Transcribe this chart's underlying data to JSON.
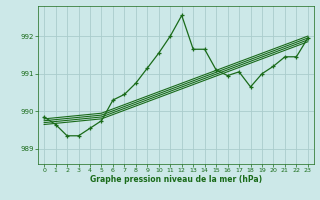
{
  "xlabel": "Graphe pression niveau de la mer (hPa)",
  "bg_color": "#cce8e8",
  "grid_color": "#aacccc",
  "line_color": "#1a6b1a",
  "xlim": [
    -0.5,
    23.5
  ],
  "ylim": [
    988.6,
    992.8
  ],
  "yticks": [
    989,
    990,
    991,
    992
  ],
  "xticks": [
    0,
    1,
    2,
    3,
    4,
    5,
    6,
    7,
    8,
    9,
    10,
    11,
    12,
    13,
    14,
    15,
    16,
    17,
    18,
    19,
    20,
    21,
    22,
    23
  ],
  "line1_x": [
    0,
    1,
    2,
    3,
    4,
    5,
    6,
    7,
    8,
    9,
    10,
    11,
    12,
    13,
    14,
    15,
    16,
    17,
    18,
    19,
    20,
    21,
    22,
    23
  ],
  "line1_y": [
    989.85,
    989.65,
    989.35,
    989.35,
    989.55,
    989.75,
    990.3,
    990.45,
    990.75,
    991.15,
    991.55,
    992.0,
    992.55,
    991.65,
    991.65,
    991.1,
    990.95,
    991.05,
    990.65,
    991.0,
    991.2,
    991.45,
    991.45,
    991.95
  ],
  "line2_x": [
    0,
    5,
    23
  ],
  "line2_y": [
    989.65,
    989.8,
    991.85
  ],
  "line3_x": [
    0,
    5,
    23
  ],
  "line3_y": [
    989.7,
    989.85,
    991.9
  ],
  "line4_x": [
    0,
    5,
    23
  ],
  "line4_y": [
    989.75,
    989.9,
    991.95
  ],
  "line5_x": [
    0,
    5,
    23
  ],
  "line5_y": [
    989.8,
    989.95,
    992.0
  ]
}
